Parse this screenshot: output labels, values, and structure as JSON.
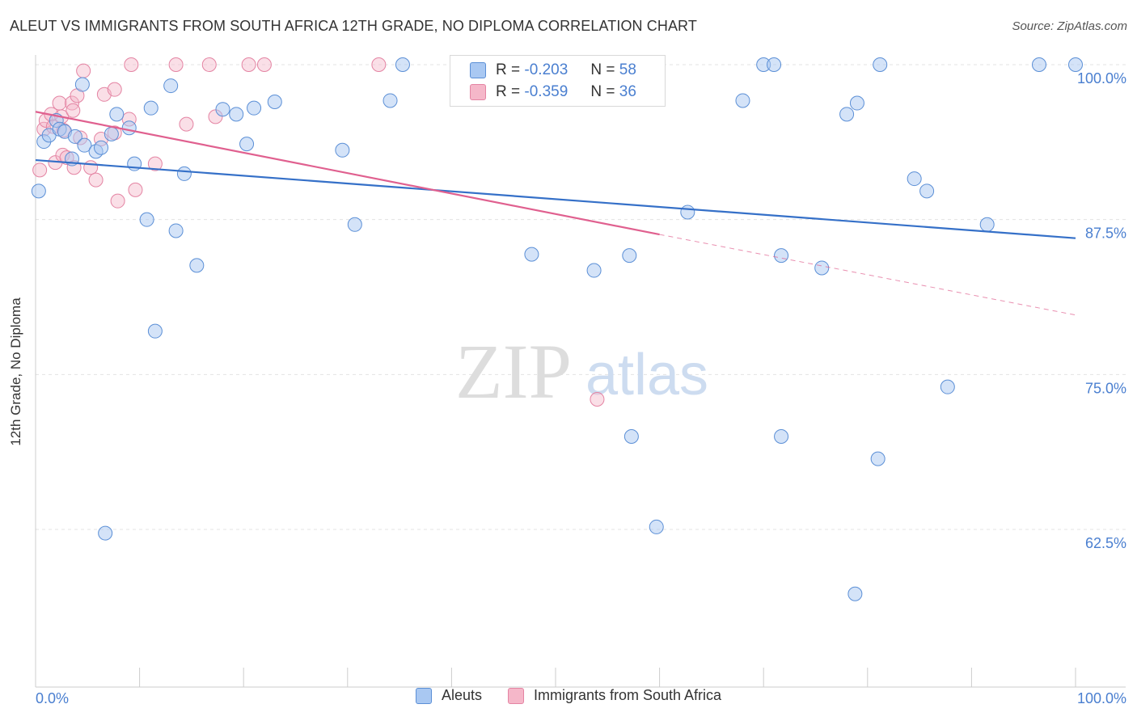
{
  "title": "ALEUT VS IMMIGRANTS FROM SOUTH AFRICA 12TH GRADE, NO DIPLOMA CORRELATION CHART",
  "source": "Source: ZipAtlas.com",
  "watermark_zip": "ZIP",
  "watermark_atlas": "atlas",
  "legend": {
    "r_label": "R =",
    "n_label": "N =",
    "rows": [
      {
        "r": "-0.203",
        "n": "58",
        "color": "#a9c8f2"
      },
      {
        "r": "-0.359",
        "n": "36",
        "color": "#f5b7c9"
      }
    ]
  },
  "colors": {
    "aleuts_fill": "#a9c8f2",
    "aleuts_stroke": "#5b8fd6",
    "aleuts_line": "#3570c8",
    "sa_fill": "#f5b7c9",
    "sa_stroke": "#e484a3",
    "sa_line": "#e0608f",
    "tick_label": "#4a7fd0",
    "grid": "#e3e3e3"
  },
  "chart_data": {
    "type": "scatter",
    "title": "ALEUT VS IMMIGRANTS FROM SOUTH AFRICA 12TH GRADE, NO DIPLOMA CORRELATION CHART",
    "xlabel": "",
    "ylabel": "12th Grade, No Diploma",
    "xlim": [
      0,
      100
    ],
    "ylim": [
      50,
      101
    ],
    "x_tick_labels": [
      "0.0%",
      "100.0%"
    ],
    "y_ticks": [
      100.0,
      87.5,
      75.0,
      62.5
    ],
    "y_tick_labels": [
      "100.0%",
      "87.5%",
      "75.0%",
      "62.5%"
    ],
    "grid": true,
    "legend_position": "top-center",
    "series": [
      {
        "name": "Aleuts",
        "r": -0.203,
        "n": 58,
        "trend": {
          "x0": 0,
          "y0": 92.3,
          "x1": 100,
          "y1": 86.0
        },
        "points": [
          [
            0.3,
            89.8
          ],
          [
            0.8,
            93.8
          ],
          [
            1.3,
            94.3
          ],
          [
            2.0,
            95.5
          ],
          [
            2.3,
            94.8
          ],
          [
            2.8,
            94.6
          ],
          [
            3.5,
            92.4
          ],
          [
            3.8,
            94.2
          ],
          [
            4.5,
            98.4
          ],
          [
            4.7,
            93.5
          ],
          [
            5.8,
            93.0
          ],
          [
            6.3,
            93.3
          ],
          [
            7.3,
            94.4
          ],
          [
            7.8,
            96.0
          ],
          [
            9.0,
            94.9
          ],
          [
            9.5,
            92.0
          ],
          [
            10.7,
            87.5
          ],
          [
            11.1,
            96.5
          ],
          [
            11.5,
            78.5
          ],
          [
            13.0,
            98.3
          ],
          [
            13.5,
            86.6
          ],
          [
            14.3,
            91.2
          ],
          [
            15.5,
            83.8
          ],
          [
            18.0,
            96.4
          ],
          [
            19.3,
            96.0
          ],
          [
            20.3,
            93.6
          ],
          [
            21.0,
            96.5
          ],
          [
            23.0,
            97.0
          ],
          [
            6.7,
            62.2
          ],
          [
            29.5,
            93.1
          ],
          [
            30.7,
            87.1
          ],
          [
            34.1,
            97.1
          ],
          [
            35.3,
            100.0
          ],
          [
            47.7,
            84.7
          ],
          [
            52.0,
            100.0
          ],
          [
            53.7,
            83.4
          ],
          [
            55.7,
            100.0
          ],
          [
            57.1,
            84.6
          ],
          [
            57.3,
            70.0
          ],
          [
            59.7,
            62.7
          ],
          [
            62.7,
            88.1
          ],
          [
            68.0,
            97.1
          ],
          [
            70.0,
            100.0
          ],
          [
            71.0,
            100.0
          ],
          [
            71.7,
            84.6
          ],
          [
            71.7,
            70.0
          ],
          [
            75.6,
            83.6
          ],
          [
            78.0,
            96.0
          ],
          [
            78.8,
            57.3
          ],
          [
            79.0,
            96.9
          ],
          [
            81.0,
            68.2
          ],
          [
            81.2,
            100.0
          ],
          [
            84.5,
            90.8
          ],
          [
            85.7,
            89.8
          ],
          [
            87.7,
            74.0
          ],
          [
            91.5,
            87.1
          ],
          [
            96.5,
            100.0
          ],
          [
            100.0,
            100.0
          ]
        ]
      },
      {
        "name": "Immigrants from South Africa",
        "r": -0.359,
        "n": 36,
        "trend": {
          "x0": 0,
          "y0": 96.2,
          "x1": 60,
          "y1": 86.3,
          "dash_x1": 100,
          "dash_y1": 79.8
        },
        "points": [
          [
            0.4,
            91.5
          ],
          [
            0.8,
            94.8
          ],
          [
            1.0,
            95.5
          ],
          [
            1.5,
            96.0
          ],
          [
            1.7,
            95.0
          ],
          [
            1.9,
            92.1
          ],
          [
            2.3,
            96.9
          ],
          [
            2.5,
            95.8
          ],
          [
            2.7,
            94.7
          ],
          [
            2.6,
            92.7
          ],
          [
            3.0,
            92.5
          ],
          [
            3.5,
            96.9
          ],
          [
            3.6,
            96.3
          ],
          [
            3.7,
            91.7
          ],
          [
            4.0,
            97.5
          ],
          [
            4.3,
            94.1
          ],
          [
            4.6,
            99.5
          ],
          [
            5.3,
            91.7
          ],
          [
            5.8,
            90.7
          ],
          [
            6.3,
            94.0
          ],
          [
            6.6,
            97.6
          ],
          [
            7.6,
            94.5
          ],
          [
            7.6,
            98.0
          ],
          [
            7.9,
            89.0
          ],
          [
            9.0,
            95.6
          ],
          [
            9.2,
            100.0
          ],
          [
            9.6,
            89.9
          ],
          [
            11.5,
            92.0
          ],
          [
            13.5,
            100.0
          ],
          [
            14.5,
            95.2
          ],
          [
            16.7,
            100.0
          ],
          [
            17.3,
            95.8
          ],
          [
            20.5,
            100.0
          ],
          [
            22.0,
            100.0
          ],
          [
            33.0,
            100.0
          ],
          [
            54.0,
            73.0
          ]
        ]
      }
    ]
  },
  "bottom_legend": [
    "Aleuts",
    "Immigrants from South Africa"
  ]
}
